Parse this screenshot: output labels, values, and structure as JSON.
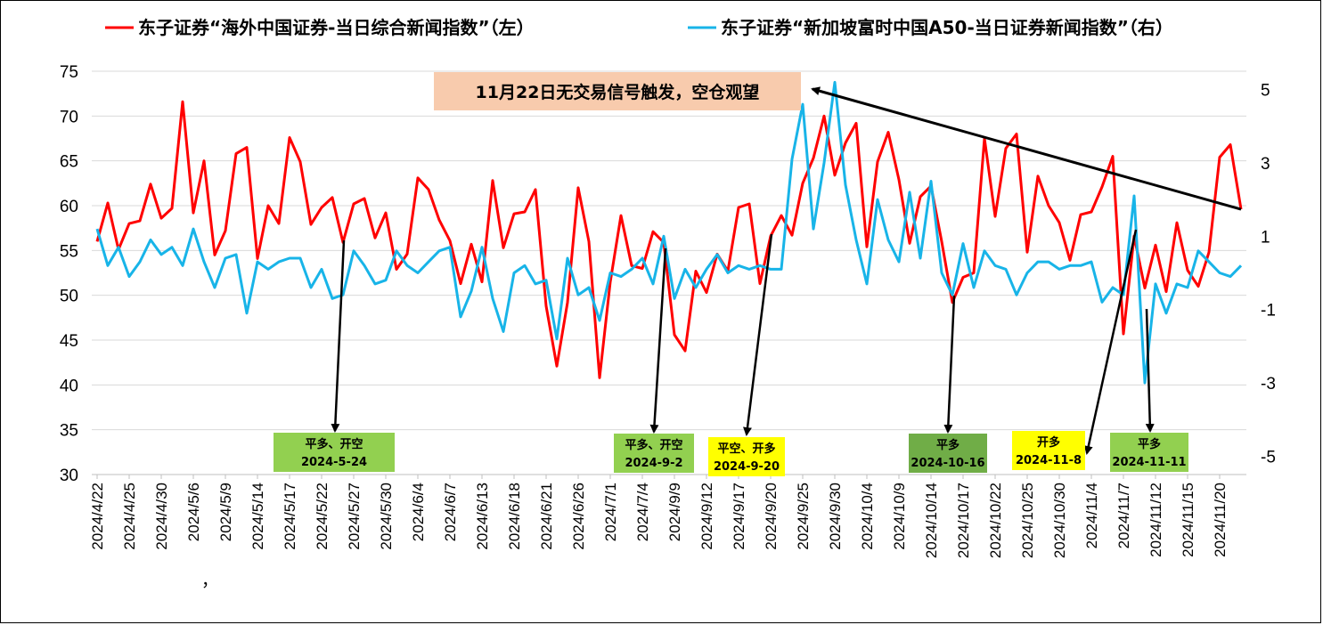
{
  "chart_data": {
    "type": "line",
    "legend_position": "top",
    "grid": true,
    "series": [
      {
        "name": "东子证券“海外中国证券-当日综合新闻指数”（左）",
        "axis": "left",
        "color": "#ff0000",
        "values": [
          56.0,
          60.3,
          55.1,
          58.0,
          58.3,
          62.4,
          58.6,
          59.7,
          71.6,
          59.2,
          65.0,
          54.5,
          57.2,
          65.8,
          66.5,
          54.1,
          60.0,
          58.0,
          67.6,
          64.9,
          57.9,
          59.8,
          60.9,
          55.9,
          60.2,
          60.8,
          56.4,
          59.2,
          52.9,
          54.6,
          63.1,
          61.8,
          58.4,
          56.1,
          51.3,
          55.7,
          51.5,
          62.8,
          55.3,
          59.1,
          59.3,
          61.8,
          48.8,
          42.1,
          49.2,
          62.0,
          56.0,
          40.8,
          51.5,
          58.9,
          53.3,
          53.0,
          57.1,
          55.9,
          45.6,
          43.8,
          52.7,
          50.3,
          54.6,
          52.7,
          59.8,
          60.2,
          51.3,
          56.6,
          58.9,
          56.7,
          62.5,
          65.3,
          70.0,
          63.4,
          67.0,
          69.2,
          55.4,
          64.9,
          68.2,
          62.9,
          55.8,
          61.0,
          62.2,
          56.0,
          49.2,
          52.0,
          52.5,
          67.5,
          58.8,
          66.4,
          68.0,
          54.8,
          63.3,
          60.0,
          58.1,
          53.9,
          59.0,
          59.3,
          62.1,
          65.5,
          45.7,
          56.6,
          50.8,
          55.6,
          50.4,
          58.1,
          52.8,
          51.0,
          54.8,
          65.4,
          66.8,
          59.6
        ]
      },
      {
        "name": "东子证券“新加坡富时中国A50-当日证券新闻指数”（右）",
        "axis": "right",
        "color": "#18b4e8",
        "values": [
          1.2,
          0.2,
          0.7,
          -0.1,
          0.3,
          0.9,
          0.5,
          0.7,
          0.2,
          1.2,
          0.3,
          -0.4,
          0.4,
          0.5,
          -1.1,
          0.3,
          0.1,
          0.3,
          0.4,
          0.4,
          -0.4,
          0.1,
          -0.7,
          -0.6,
          0.6,
          0.2,
          -0.3,
          -0.2,
          0.6,
          0.2,
          0.0,
          0.3,
          0.6,
          0.7,
          -1.2,
          -0.5,
          0.7,
          -0.7,
          -1.6,
          0.0,
          0.2,
          -0.3,
          -0.2,
          -1.8,
          0.4,
          -0.6,
          -0.4,
          -1.3,
          0.0,
          -0.1,
          0.1,
          0.4,
          -0.3,
          1.0,
          -0.7,
          0.1,
          -0.4,
          0.1,
          0.5,
          0.0,
          0.2,
          0.1,
          0.2,
          0.1,
          0.1,
          3.1,
          4.6,
          1.2,
          3.0,
          5.2,
          2.4,
          0.9,
          -0.3,
          2.0,
          0.9,
          0.3,
          2.2,
          0.4,
          2.5,
          0.0,
          -0.6,
          0.8,
          -0.4,
          0.6,
          0.2,
          0.1,
          -0.6,
          0.0,
          0.3,
          0.3,
          0.1,
          0.2,
          0.2,
          0.3,
          -0.8,
          -0.4,
          -0.6,
          2.1,
          -3.0,
          -0.3,
          -1.1,
          -0.3,
          -0.4,
          0.6,
          0.3,
          0.0,
          -0.1,
          0.2
        ]
      }
    ],
    "y_left": {
      "min": 30,
      "max": 75,
      "step": 5,
      "ticks": [
        "30",
        "35",
        "40",
        "45",
        "50",
        "55",
        "60",
        "65",
        "70",
        "75"
      ]
    },
    "y_right": {
      "min": -5.5,
      "max": 5.5,
      "ticks": [
        "-5",
        "-3",
        "-1",
        "1",
        "3",
        "5"
      ],
      "tick_values": [
        -5,
        -3,
        -1,
        1,
        3,
        5
      ]
    },
    "x_tick_labels": [
      {
        "index": 0,
        "label": "2024/4/22"
      },
      {
        "index": 3,
        "label": "2024/4/25"
      },
      {
        "index": 6,
        "label": "2024/4/30"
      },
      {
        "index": 9,
        "label": "2024/5/6"
      },
      {
        "index": 12,
        "label": "2024/5/9"
      },
      {
        "index": 15,
        "label": "2024/5/14"
      },
      {
        "index": 18,
        "label": "2024/5/17"
      },
      {
        "index": 21,
        "label": "2024/5/22"
      },
      {
        "index": 24,
        "label": "2024/5/27"
      },
      {
        "index": 27,
        "label": "2024/5/30"
      },
      {
        "index": 30,
        "label": "2024/6/4"
      },
      {
        "index": 33,
        "label": "2024/6/7"
      },
      {
        "index": 36,
        "label": "2024/6/13"
      },
      {
        "index": 39,
        "label": "2024/6/18"
      },
      {
        "index": 42,
        "label": "2024/6/21"
      },
      {
        "index": 45,
        "label": "2024/6/26"
      },
      {
        "index": 48,
        "label": "2024/7/1"
      },
      {
        "index": 51,
        "label": "2024/7/4"
      },
      {
        "index": 54,
        "label": "2024/9/9"
      },
      {
        "index": 57,
        "label": "2024/9/12"
      },
      {
        "index": 60,
        "label": "2024/9/17"
      },
      {
        "index": 63,
        "label": "2024/9/20"
      },
      {
        "index": 66,
        "label": "2024/9/25"
      },
      {
        "index": 69,
        "label": "2024/9/30"
      },
      {
        "index": 72,
        "label": "2024/10/4"
      },
      {
        "index": 75,
        "label": "2024/10/9"
      },
      {
        "index": 78,
        "label": "2024/10/14"
      },
      {
        "index": 81,
        "label": "2024/10/17"
      },
      {
        "index": 84,
        "label": "2024/10/22"
      },
      {
        "index": 87,
        "label": "2024/10/25"
      },
      {
        "index": 90,
        "label": "2024/10/30"
      },
      {
        "index": 93,
        "label": "2024/11/4"
      },
      {
        "index": 96,
        "label": "2024/11/7"
      },
      {
        "index": 99,
        "label": "2024/11/12"
      },
      {
        "index": 102,
        "label": "2024/11/15"
      },
      {
        "index": 105,
        "label": "2024/11/20"
      }
    ],
    "stray_mark": "，",
    "banner": {
      "text": "11月22日无交易信号触发，空仓观望",
      "bg": "#f8cbad",
      "arrow_to_index": 107
    },
    "annotations": [
      {
        "line1": "平多、开空",
        "line2": "2024-5-24",
        "bg": "#92d050",
        "index": 23
      },
      {
        "line1": "平多、开空",
        "line2": "2024-9-2",
        "bg": "#92d050",
        "index": 53
      },
      {
        "line1": "平空、开多",
        "line2": "2024-9-20",
        "bg": "#ffff00",
        "index": 63
      },
      {
        "line1": "平多",
        "line2": "2024-10-16",
        "bg": "#70ad47",
        "index": 80
      },
      {
        "line1": "开多",
        "line2": "2024-11-8",
        "bg": "#ffff00",
        "index": 97
      },
      {
        "line1": "平多",
        "line2": "2024-11-11",
        "bg": "#92d050",
        "index": 98
      }
    ]
  }
}
